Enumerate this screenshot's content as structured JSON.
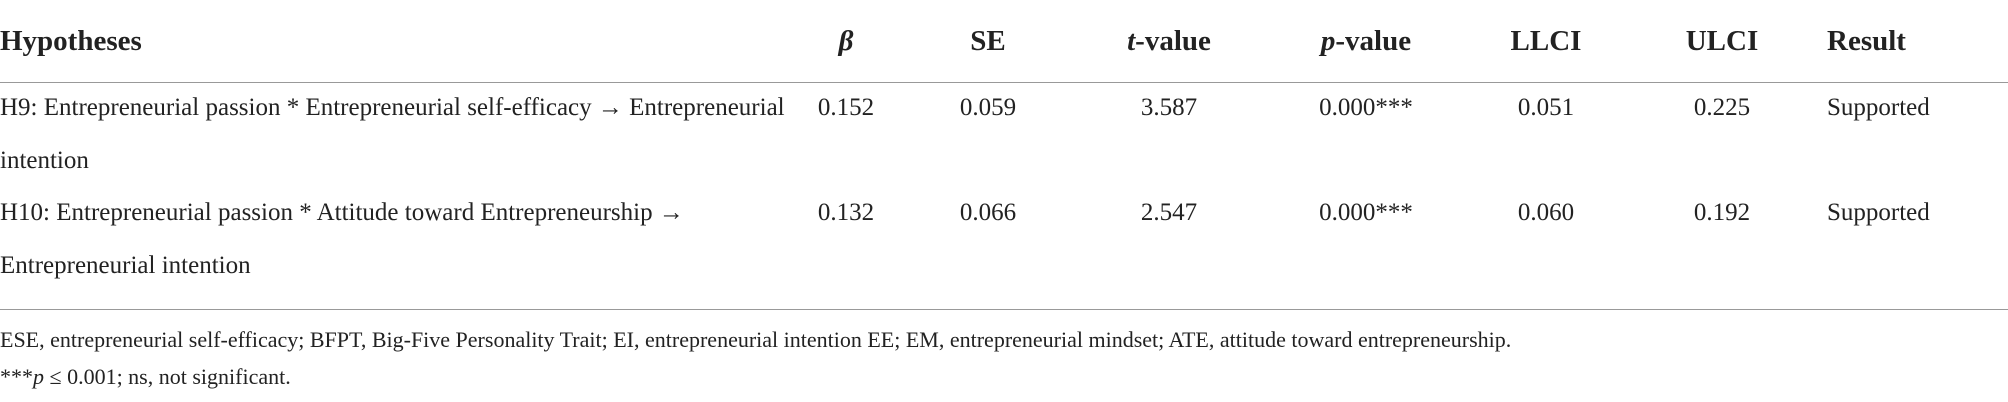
{
  "table": {
    "header": [
      "Hypotheses",
      "β",
      "SE",
      "t-value",
      "p-value",
      "LLCI",
      "ULCI",
      "Result"
    ],
    "rows": [
      [
        "H9: Entrepreneurial passion * Entrepreneurial self-efficacy → Entrepreneurial intention",
        "0.152",
        "0.059",
        "3.587",
        "0.000***",
        "0.051",
        "0.225",
        "Supported"
      ],
      [
        "H10: Entrepreneurial passion * Attitude toward Entrepreneurship → Entrepreneurial intention",
        "0.132",
        "0.066",
        "2.547",
        "0.000***",
        "0.060",
        "0.192",
        "Supported"
      ]
    ]
  },
  "footnotes": {
    "abbreviations": "ESE, entrepreneurial self-efficacy; BFPT, Big-Five Personality Trait; EI, entrepreneurial intention EE; EM, entrepreneurial mindset; ATE, attitude toward entrepreneurship.",
    "significance": [
      "***",
      "p",
      " ≤ 0.001; ns, not significant."
    ]
  }
}
